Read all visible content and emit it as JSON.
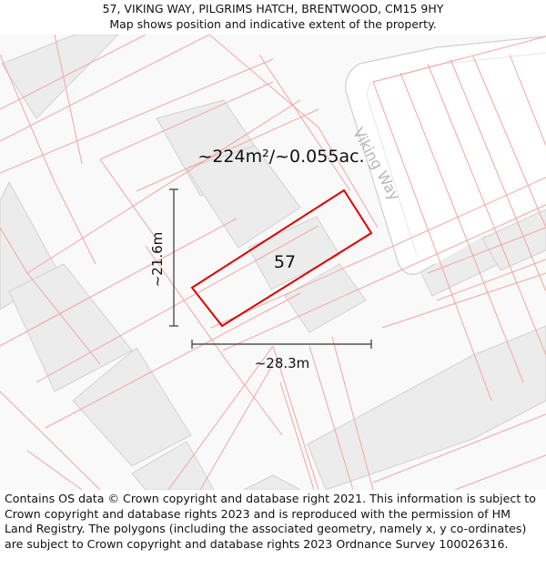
{
  "header": {
    "address": "57, VIKING WAY, PILGRIMS HATCH, BRENTWOOD, CM15 9HY",
    "subtitle": "Map shows position and indicative extent of the property."
  },
  "map": {
    "road_label": "Viking Way",
    "plot_number": "57",
    "area_label": "~224m²/~0.055ac.",
    "height_label": "~21.6m",
    "width_label": "~28.3m",
    "colors": {
      "background": "#f9f9f9",
      "building_fill": "#ececec",
      "building_stroke": "#d2d2d2",
      "parcel_line": "#f4a4a4",
      "property_outline": "#e00000",
      "road_fill": "#ffffff",
      "road_edge": "#cfcfcf",
      "dimension_line": "#333333"
    }
  },
  "footer": {
    "copyright": "Contains OS data © Crown copyright and database right 2021. This information is subject to Crown copyright and database rights 2023 and is reproduced with the permission of HM Land Registry. The polygons (including the associated geometry, namely x, y co-ordinates) are subject to Crown copyright and database rights 2023 Ordnance Survey 100026316."
  }
}
